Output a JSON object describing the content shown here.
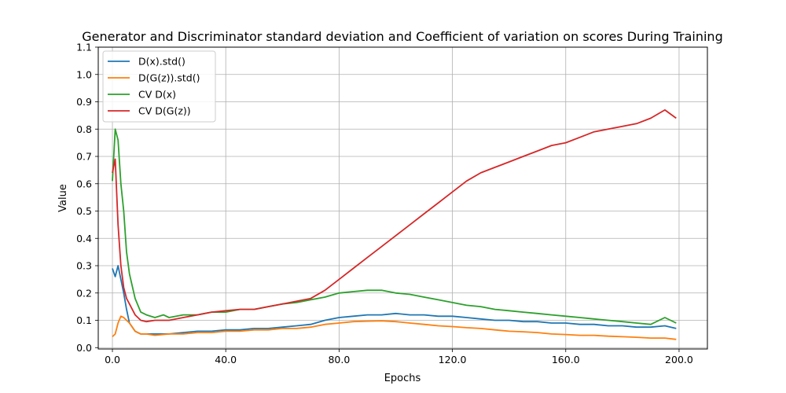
{
  "chart_data": {
    "type": "line",
    "title": "Generator and Discriminator standard deviation and Coefficient of variation on scores During Training",
    "xlabel": "Epochs",
    "ylabel": "Value",
    "xlim": [
      -5,
      210
    ],
    "ylim": [
      -0.005,
      1.1
    ],
    "xticks": [
      0,
      40,
      80,
      120,
      160,
      200
    ],
    "xtick_labels": [
      "0.0",
      "40.0",
      "80.0",
      "120.0",
      "160.0",
      "200.0"
    ],
    "yticks": [
      0.0,
      0.1,
      0.2,
      0.3,
      0.4,
      0.5,
      0.6,
      0.7,
      0.8,
      0.9,
      1.0,
      1.1
    ],
    "ytick_labels": [
      "0.0",
      "0.1",
      "0.2",
      "0.3",
      "0.4",
      "0.5",
      "0.6",
      "0.7",
      "0.8",
      "0.9",
      "1.0",
      "1.1"
    ],
    "grid": true,
    "legend_position": "top-left",
    "series": [
      {
        "name": "D(x).std()",
        "color": "#1f77b4",
        "x": [
          0,
          1,
          2,
          3,
          4,
          5,
          6,
          8,
          10,
          12,
          15,
          20,
          25,
          30,
          35,
          40,
          45,
          50,
          55,
          60,
          65,
          70,
          75,
          80,
          85,
          90,
          95,
          100,
          105,
          110,
          115,
          120,
          125,
          130,
          135,
          140,
          145,
          150,
          155,
          160,
          165,
          170,
          175,
          180,
          185,
          190,
          195,
          199
        ],
        "values": [
          0.29,
          0.26,
          0.3,
          0.25,
          0.2,
          0.14,
          0.09,
          0.06,
          0.05,
          0.05,
          0.05,
          0.05,
          0.055,
          0.06,
          0.06,
          0.065,
          0.065,
          0.07,
          0.07,
          0.075,
          0.08,
          0.085,
          0.1,
          0.11,
          0.115,
          0.12,
          0.12,
          0.125,
          0.12,
          0.12,
          0.115,
          0.115,
          0.11,
          0.105,
          0.1,
          0.1,
          0.095,
          0.095,
          0.09,
          0.09,
          0.085,
          0.085,
          0.08,
          0.08,
          0.075,
          0.075,
          0.08,
          0.07
        ]
      },
      {
        "name": "D(G(z)).std()",
        "color": "#ff7f0e",
        "x": [
          0,
          1,
          2,
          3,
          4,
          5,
          6,
          8,
          10,
          12,
          15,
          20,
          25,
          30,
          35,
          40,
          45,
          50,
          55,
          60,
          65,
          70,
          75,
          80,
          85,
          90,
          95,
          100,
          105,
          110,
          115,
          120,
          125,
          130,
          135,
          140,
          145,
          150,
          155,
          160,
          165,
          170,
          175,
          180,
          185,
          190,
          195,
          199
        ],
        "values": [
          0.04,
          0.05,
          0.09,
          0.115,
          0.11,
          0.1,
          0.09,
          0.06,
          0.05,
          0.05,
          0.045,
          0.05,
          0.05,
          0.055,
          0.055,
          0.06,
          0.06,
          0.065,
          0.065,
          0.07,
          0.07,
          0.075,
          0.085,
          0.09,
          0.095,
          0.097,
          0.098,
          0.095,
          0.09,
          0.085,
          0.08,
          0.077,
          0.073,
          0.07,
          0.065,
          0.06,
          0.058,
          0.055,
          0.05,
          0.048,
          0.045,
          0.045,
          0.042,
          0.04,
          0.038,
          0.035,
          0.035,
          0.03
        ]
      },
      {
        "name": "CV D(x)",
        "color": "#2ca02c",
        "x": [
          0,
          1,
          2,
          3,
          4,
          5,
          6,
          8,
          10,
          12,
          15,
          18,
          20,
          25,
          30,
          35,
          40,
          45,
          50,
          55,
          60,
          65,
          70,
          75,
          80,
          85,
          90,
          95,
          100,
          105,
          110,
          115,
          120,
          125,
          130,
          135,
          140,
          145,
          150,
          155,
          160,
          165,
          170,
          175,
          180,
          185,
          190,
          195,
          199
        ],
        "values": [
          0.61,
          0.8,
          0.76,
          0.6,
          0.5,
          0.35,
          0.27,
          0.18,
          0.13,
          0.12,
          0.11,
          0.12,
          0.11,
          0.12,
          0.12,
          0.13,
          0.13,
          0.14,
          0.14,
          0.15,
          0.16,
          0.165,
          0.175,
          0.185,
          0.2,
          0.205,
          0.21,
          0.21,
          0.2,
          0.195,
          0.185,
          0.175,
          0.165,
          0.155,
          0.15,
          0.14,
          0.135,
          0.13,
          0.125,
          0.12,
          0.115,
          0.11,
          0.105,
          0.1,
          0.095,
          0.09,
          0.085,
          0.11,
          0.09
        ]
      },
      {
        "name": "CV D(G(z))",
        "color": "#d62728",
        "x": [
          0,
          1,
          2,
          3,
          4,
          5,
          6,
          8,
          10,
          12,
          15,
          20,
          25,
          30,
          35,
          40,
          45,
          50,
          55,
          60,
          65,
          70,
          75,
          80,
          85,
          90,
          95,
          100,
          105,
          110,
          115,
          120,
          125,
          130,
          135,
          140,
          145,
          150,
          155,
          160,
          165,
          170,
          175,
          180,
          185,
          190,
          195,
          199
        ],
        "values": [
          0.64,
          0.69,
          0.45,
          0.3,
          0.22,
          0.18,
          0.16,
          0.12,
          0.1,
          0.095,
          0.1,
          0.1,
          0.11,
          0.12,
          0.13,
          0.135,
          0.14,
          0.14,
          0.15,
          0.16,
          0.17,
          0.18,
          0.21,
          0.25,
          0.29,
          0.33,
          0.37,
          0.41,
          0.45,
          0.49,
          0.53,
          0.57,
          0.61,
          0.64,
          0.66,
          0.68,
          0.7,
          0.72,
          0.74,
          0.75,
          0.77,
          0.79,
          0.8,
          0.81,
          0.82,
          0.84,
          0.87,
          0.84
        ]
      }
    ]
  }
}
